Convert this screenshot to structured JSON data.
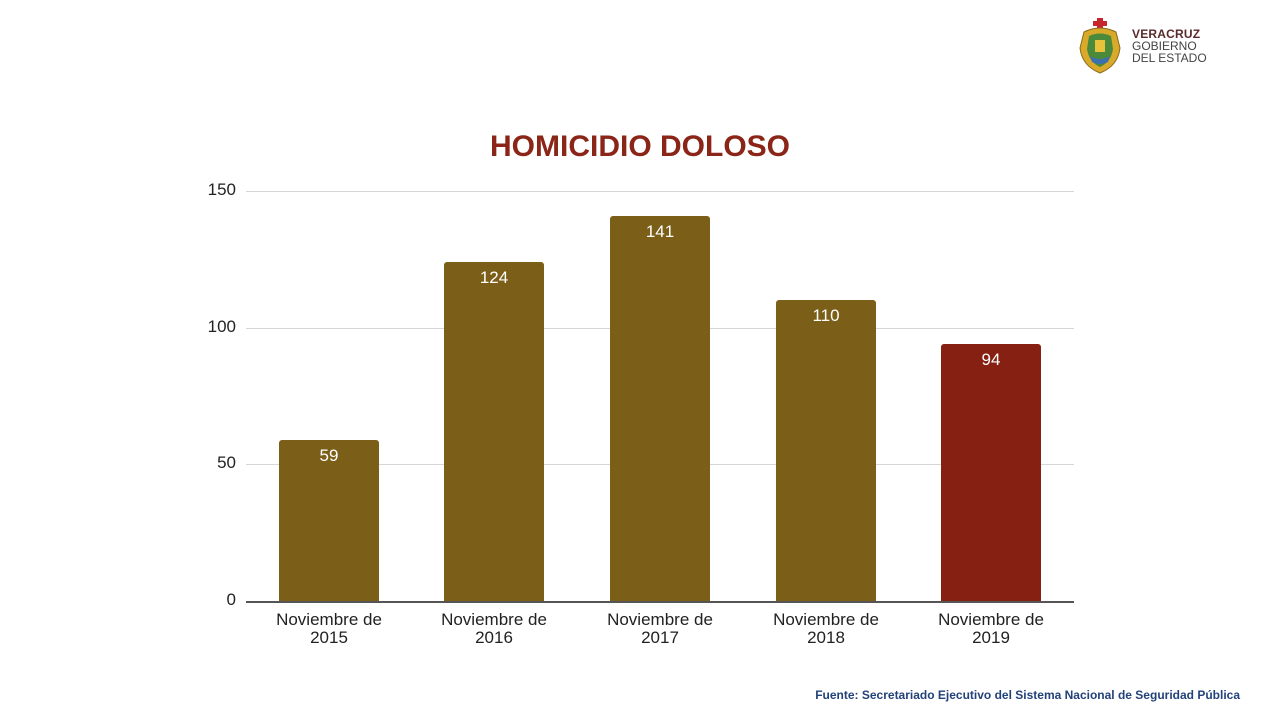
{
  "logo": {
    "line1": "VERACRUZ",
    "line2": "GOBIERNO",
    "line3": "DEL ESTADO"
  },
  "title": "HOMICIDIO DOLOSO",
  "source": "Fuente: Secretariado Ejecutivo del Sistema Nacional de Seguridad Pública",
  "colors": {
    "bar_default": "#7b5e17",
    "bar_highlight": "#862012",
    "title": "#8a2518",
    "source": "#23427a"
  },
  "chart_data": {
    "type": "bar",
    "title": "HOMICIDIO DOLOSO",
    "xlabel": "",
    "ylabel": "",
    "categories": [
      "Noviembre de 2015",
      "Noviembre de 2016",
      "Noviembre de 2017",
      "Noviembre de 2018",
      "Noviembre de 2019"
    ],
    "category_lines": [
      [
        "Noviembre de",
        "2015"
      ],
      [
        "Noviembre de",
        "2016"
      ],
      [
        "Noviembre de",
        "2017"
      ],
      [
        "Noviembre de",
        "2018"
      ],
      [
        "Noviembre de",
        "2019"
      ]
    ],
    "values": [
      59,
      124,
      141,
      110,
      94
    ],
    "bar_colors": [
      "#7b5e17",
      "#7b5e17",
      "#7b5e17",
      "#7b5e17",
      "#862012"
    ],
    "ylim": [
      0,
      150
    ],
    "yticks": [
      0,
      50,
      100,
      150
    ],
    "grid": true,
    "legend": null,
    "data_labels": true
  }
}
